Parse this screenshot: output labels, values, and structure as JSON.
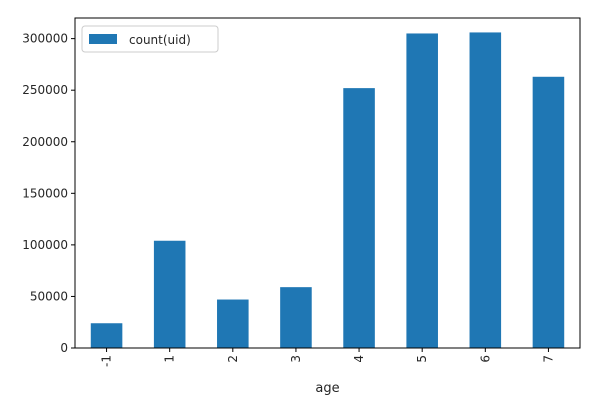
{
  "chart_data": {
    "type": "bar",
    "categories": [
      "-1",
      "1",
      "2",
      "3",
      "4",
      "5",
      "6",
      "7"
    ],
    "series": [
      {
        "name": "count(uid)",
        "values": [
          24000,
          104000,
          47000,
          59000,
          252000,
          305000,
          306000,
          263000
        ],
        "color": "#1f77b4"
      }
    ],
    "xlabel": "age",
    "ylabel": "",
    "ylim": [
      0,
      320000
    ],
    "yticks": [
      0,
      50000,
      100000,
      150000,
      200000,
      250000,
      300000
    ],
    "ytick_labels": [
      "0",
      "50000",
      "100000",
      "150000",
      "200000",
      "250000",
      "300000"
    ],
    "legend": {
      "placement": "top-left"
    },
    "grid": false,
    "xtick_rotation": 90
  }
}
